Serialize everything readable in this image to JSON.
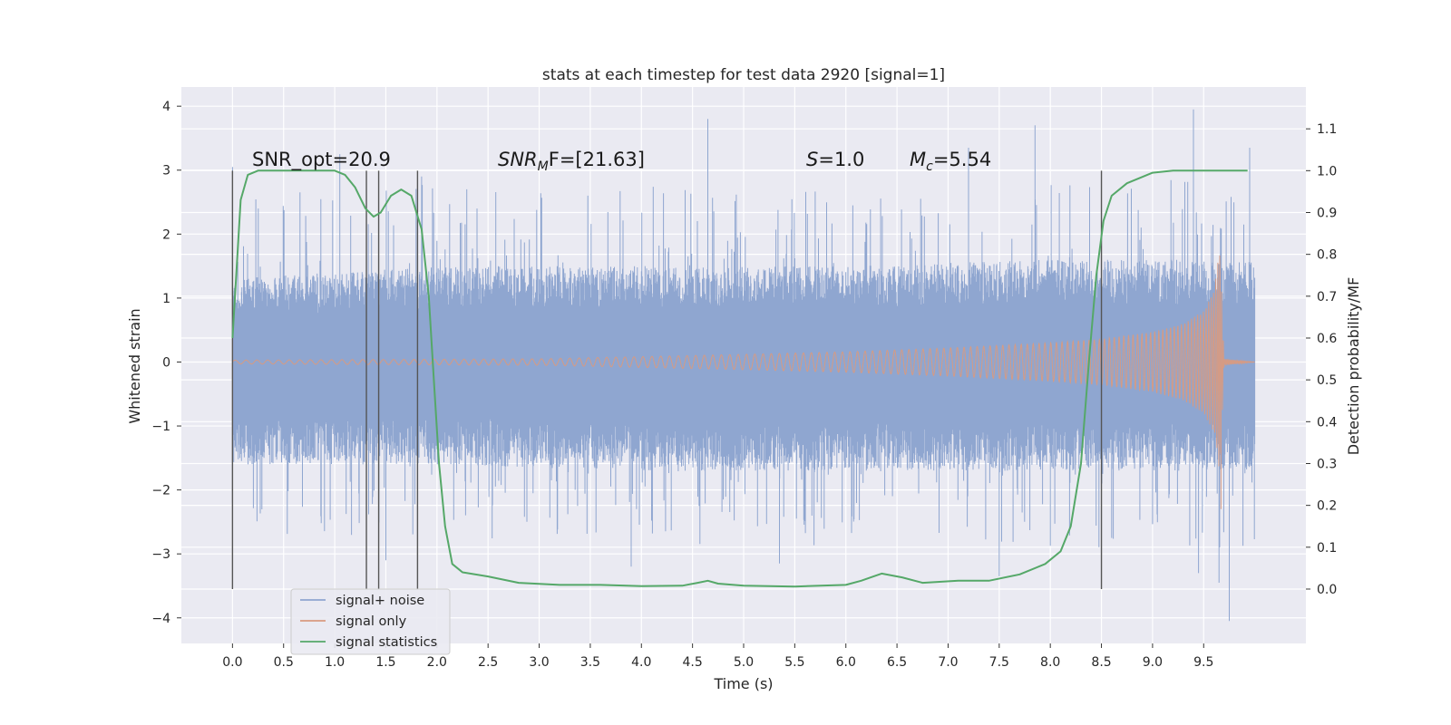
{
  "chart_data": {
    "type": "line",
    "title": "stats at each timestep for test data 2920 [signal=1]",
    "xlabel": "Time (s)",
    "ylabel": "Whitened strain",
    "y2label": "Detection probability/MF",
    "xlim": [
      -0.5,
      10.5
    ],
    "ylim": [
      -4.4,
      4.3
    ],
    "y2lim": [
      -0.13,
      1.2
    ],
    "x_ticks": [
      "0.0",
      "0.5",
      "1.0",
      "1.5",
      "2.0",
      "2.5",
      "3.0",
      "3.5",
      "4.0",
      "4.5",
      "5.0",
      "5.5",
      "6.0",
      "6.5",
      "7.0",
      "7.5",
      "8.0",
      "8.5",
      "9.0",
      "9.5"
    ],
    "y_ticks": [
      "4",
      "3",
      "2",
      "1",
      "0",
      "−1",
      "−2",
      "−3",
      "−4"
    ],
    "y2_ticks": [
      "1.1",
      "1.0",
      "0.9",
      "0.8",
      "0.7",
      "0.6",
      "0.5",
      "0.4",
      "0.3",
      "0.2",
      "0.1",
      "0.0"
    ],
    "grid": true,
    "legend_position": "lower-left",
    "annotations": {
      "snr_opt": "SNR_opt=20.9",
      "snr_mf_base": "SNR",
      "snr_mf_sub": "M",
      "snr_mf_rest": "F=[21.63]",
      "s_label": "S",
      "s_value": "=1.0",
      "mc_label": "M",
      "mc_sub": "c",
      "mc_value": "=5.54"
    },
    "vlines_x": [
      0.0,
      1.31,
      1.43,
      1.81,
      8.5
    ],
    "series": [
      {
        "name": "signal+ noise",
        "color": "#8fa6d0",
        "description": "noisy whitened strain, roughly ±1.5 with spikes to ±4, over 0–10 s",
        "t_range": [
          0.0,
          10.0
        ],
        "envelope": [
          {
            "t": 0.0,
            "up": 1.3,
            "down": -1.6
          },
          {
            "t": 2.0,
            "up": 1.5,
            "down": -1.6
          },
          {
            "t": 4.0,
            "up": 1.5,
            "down": -1.7
          },
          {
            "t": 6.0,
            "up": 1.5,
            "down": -1.7
          },
          {
            "t": 8.0,
            "up": 1.6,
            "down": -1.7
          },
          {
            "t": 10.0,
            "up": 1.6,
            "down": -1.7
          }
        ],
        "spikes": [
          {
            "t": 0.0,
            "v": 3.05
          },
          {
            "t": 0.0,
            "v": -2.2
          },
          {
            "t": 1.05,
            "v": 3.25
          },
          {
            "t": 1.5,
            "v": -3.1
          },
          {
            "t": 1.85,
            "v": 2.9
          },
          {
            "t": 4.65,
            "v": 3.8
          },
          {
            "t": 3.9,
            "v": -3.2
          },
          {
            "t": 5.35,
            "v": -3.15
          },
          {
            "t": 7.2,
            "v": 3.35
          },
          {
            "t": 7.85,
            "v": 3.7
          },
          {
            "t": 7.5,
            "v": -3.35
          },
          {
            "t": 9.4,
            "v": 3.95
          },
          {
            "t": 9.65,
            "v": -3.45
          },
          {
            "t": 9.75,
            "v": -4.05
          },
          {
            "t": 9.95,
            "v": 3.35
          },
          {
            "t": 9.45,
            "v": -3.3
          }
        ]
      },
      {
        "name": "signal only",
        "color": "#d99a80",
        "description": "chirp signal with amplitude growing from ~0.03 to ~1.8 and merging at ~9.68 s",
        "t_range": [
          0.0,
          10.0
        ],
        "amplitude": [
          {
            "t": 0.0,
            "a": 0.03
          },
          {
            "t": 3.0,
            "a": 0.05
          },
          {
            "t": 5.0,
            "a": 0.12
          },
          {
            "t": 6.0,
            "a": 0.16
          },
          {
            "t": 7.0,
            "a": 0.22
          },
          {
            "t": 8.0,
            "a": 0.3
          },
          {
            "t": 8.5,
            "a": 0.36
          },
          {
            "t": 9.0,
            "a": 0.47
          },
          {
            "t": 9.3,
            "a": 0.6
          },
          {
            "t": 9.5,
            "a": 0.8
          },
          {
            "t": 9.6,
            "a": 1.1
          },
          {
            "t": 9.66,
            "a": 1.8
          },
          {
            "t": 9.7,
            "a": 0.05
          },
          {
            "t": 10.0,
            "a": 0.0
          }
        ],
        "min_spike": -2.3
      },
      {
        "name": "signal statistics",
        "color": "#55a868",
        "axis": "right",
        "points": [
          {
            "x": 0.0,
            "y": 0.6
          },
          {
            "x": 0.08,
            "y": 0.93
          },
          {
            "x": 0.15,
            "y": 0.99
          },
          {
            "x": 0.25,
            "y": 1.0
          },
          {
            "x": 0.5,
            "y": 1.0
          },
          {
            "x": 0.8,
            "y": 1.0
          },
          {
            "x": 1.0,
            "y": 1.0
          },
          {
            "x": 1.1,
            "y": 0.99
          },
          {
            "x": 1.2,
            "y": 0.96
          },
          {
            "x": 1.3,
            "y": 0.91
          },
          {
            "x": 1.38,
            "y": 0.89
          },
          {
            "x": 1.45,
            "y": 0.9
          },
          {
            "x": 1.55,
            "y": 0.94
          },
          {
            "x": 1.65,
            "y": 0.955
          },
          {
            "x": 1.75,
            "y": 0.94
          },
          {
            "x": 1.85,
            "y": 0.86
          },
          {
            "x": 1.92,
            "y": 0.7
          },
          {
            "x": 1.97,
            "y": 0.5
          },
          {
            "x": 2.02,
            "y": 0.3
          },
          {
            "x": 2.08,
            "y": 0.15
          },
          {
            "x": 2.15,
            "y": 0.06
          },
          {
            "x": 2.25,
            "y": 0.04
          },
          {
            "x": 2.5,
            "y": 0.03
          },
          {
            "x": 2.8,
            "y": 0.015
          },
          {
            "x": 3.2,
            "y": 0.01
          },
          {
            "x": 3.6,
            "y": 0.01
          },
          {
            "x": 4.0,
            "y": 0.007
          },
          {
            "x": 4.4,
            "y": 0.008
          },
          {
            "x": 4.55,
            "y": 0.015
          },
          {
            "x": 4.65,
            "y": 0.02
          },
          {
            "x": 4.75,
            "y": 0.013
          },
          {
            "x": 5.0,
            "y": 0.008
          },
          {
            "x": 5.5,
            "y": 0.006
          },
          {
            "x": 6.0,
            "y": 0.01
          },
          {
            "x": 6.15,
            "y": 0.02
          },
          {
            "x": 6.35,
            "y": 0.037
          },
          {
            "x": 6.55,
            "y": 0.028
          },
          {
            "x": 6.75,
            "y": 0.015
          },
          {
            "x": 7.1,
            "y": 0.02
          },
          {
            "x": 7.4,
            "y": 0.02
          },
          {
            "x": 7.7,
            "y": 0.035
          },
          {
            "x": 7.95,
            "y": 0.06
          },
          {
            "x": 8.1,
            "y": 0.09
          },
          {
            "x": 8.2,
            "y": 0.15
          },
          {
            "x": 8.3,
            "y": 0.3
          },
          {
            "x": 8.38,
            "y": 0.55
          },
          {
            "x": 8.45,
            "y": 0.75
          },
          {
            "x": 8.52,
            "y": 0.88
          },
          {
            "x": 8.6,
            "y": 0.94
          },
          {
            "x": 8.75,
            "y": 0.97
          },
          {
            "x": 9.0,
            "y": 0.995
          },
          {
            "x": 9.2,
            "y": 1.0
          },
          {
            "x": 9.5,
            "y": 1.0
          },
          {
            "x": 9.93,
            "y": 1.0
          }
        ]
      }
    ]
  }
}
